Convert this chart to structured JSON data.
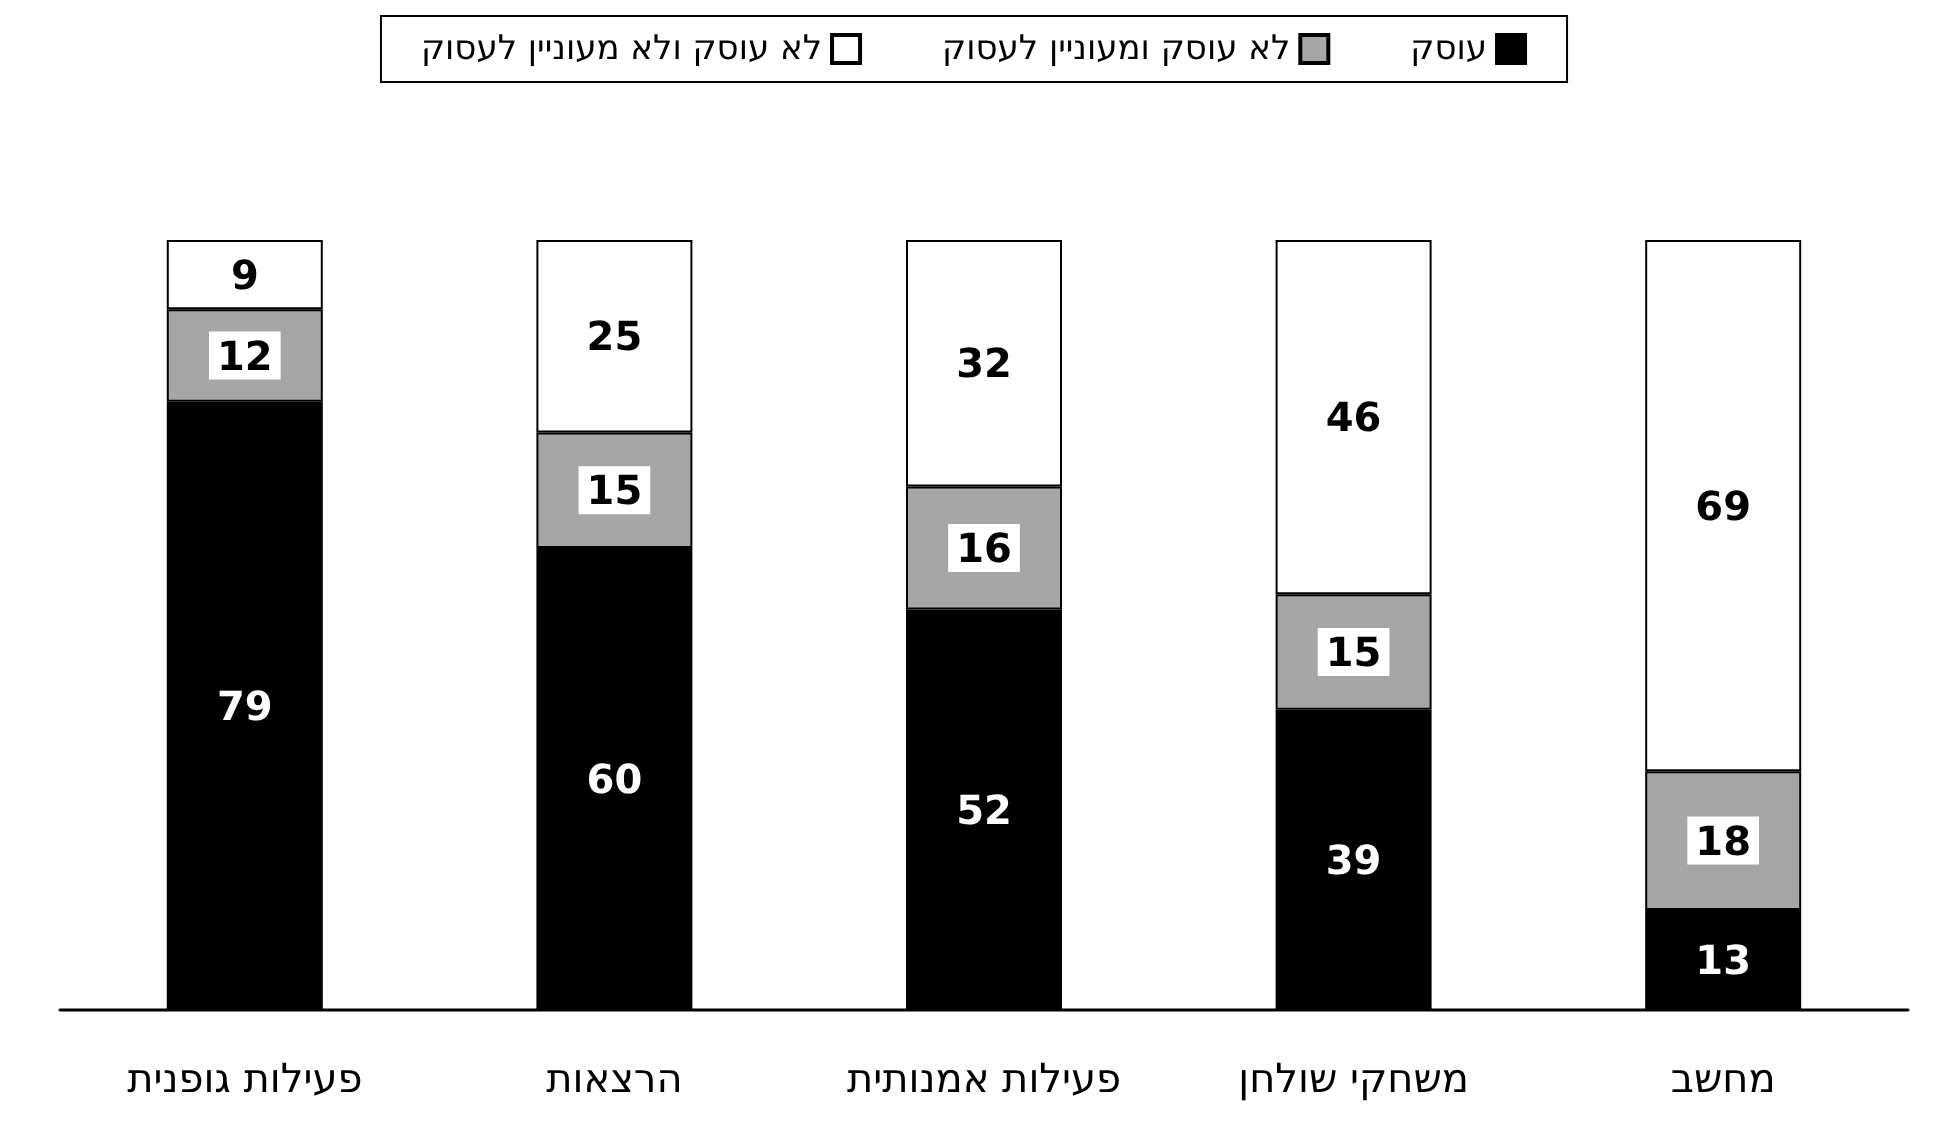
{
  "chart_data": {
    "type": "bar",
    "stacked": true,
    "categories": [
      "פעילות גופנית",
      "הרצאות",
      "פעילות אמנותית",
      "משחקי שולחן",
      "מחשב"
    ],
    "series": [
      {
        "name": "עוסק",
        "color": "#000000",
        "values": [
          79,
          60,
          52,
          39,
          13
        ]
      },
      {
        "name": "לא עוסק ומעוניין לעסוק",
        "color": "#a6a6a6",
        "values": [
          12,
          15,
          16,
          15,
          18
        ]
      },
      {
        "name": "לא עוסק ולא מעוניין לעסוק",
        "color": "#ffffff",
        "values": [
          9,
          25,
          32,
          46,
          69
        ]
      }
    ],
    "data_labels": true,
    "legend": "top"
  }
}
